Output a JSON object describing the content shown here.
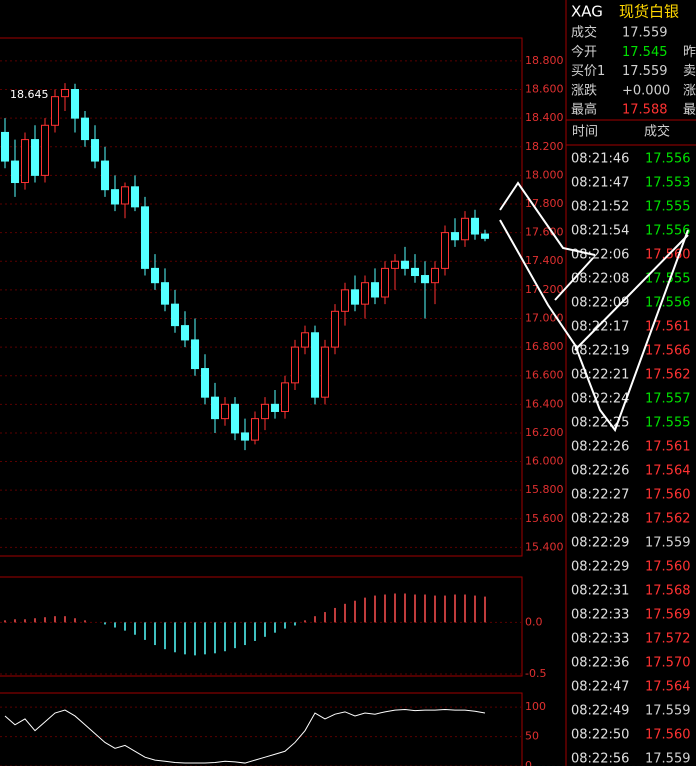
{
  "chart_data": [
    {
      "type": "candlestick",
      "annotation": "18.645",
      "open": [
        18.3,
        18.1,
        17.95,
        18.25,
        18.0,
        18.35,
        18.55,
        18.6,
        18.4,
        18.25,
        18.1,
        17.9,
        17.8,
        17.92,
        17.78,
        17.35,
        17.25,
        17.1,
        16.95,
        16.85,
        16.65,
        16.45,
        16.3,
        16.4,
        16.2,
        16.15,
        16.3,
        16.4,
        16.35,
        16.55,
        16.8,
        16.9,
        16.45,
        16.8,
        17.05,
        17.2,
        17.1,
        17.25,
        17.15,
        17.35,
        17.4,
        17.35,
        17.3,
        17.25,
        17.35,
        17.6,
        17.55,
        17.7,
        17.59
      ],
      "high": [
        18.4,
        18.25,
        18.3,
        18.35,
        18.4,
        18.6,
        18.645,
        18.64,
        18.45,
        18.35,
        18.2,
        18.0,
        17.95,
        18.0,
        17.85,
        17.45,
        17.35,
        17.2,
        17.05,
        17.0,
        16.75,
        16.55,
        16.45,
        16.45,
        16.3,
        16.35,
        16.45,
        16.5,
        16.6,
        16.85,
        16.95,
        16.95,
        16.85,
        17.1,
        17.25,
        17.3,
        17.3,
        17.35,
        17.4,
        17.45,
        17.5,
        17.45,
        17.4,
        17.4,
        17.65,
        17.7,
        17.75,
        17.76,
        17.62
      ],
      "low": [
        18.05,
        17.85,
        17.9,
        17.95,
        17.95,
        18.3,
        18.45,
        18.3,
        18.2,
        18.05,
        17.85,
        17.75,
        17.7,
        17.75,
        17.3,
        17.2,
        17.05,
        16.9,
        16.8,
        16.6,
        16.4,
        16.2,
        16.25,
        16.15,
        16.08,
        16.12,
        16.22,
        16.3,
        16.3,
        16.5,
        16.75,
        16.4,
        16.4,
        16.75,
        16.95,
        17.05,
        17.0,
        17.1,
        17.1,
        17.2,
        17.3,
        17.25,
        17.0,
        17.1,
        17.3,
        17.5,
        17.5,
        17.55,
        17.54
      ],
      "close": [
        18.1,
        17.95,
        18.25,
        18.0,
        18.35,
        18.55,
        18.6,
        18.4,
        18.25,
        18.1,
        17.9,
        17.8,
        17.92,
        17.78,
        17.35,
        17.25,
        17.1,
        16.95,
        16.85,
        16.65,
        16.45,
        16.3,
        16.4,
        16.2,
        16.15,
        16.3,
        16.4,
        16.35,
        16.55,
        16.8,
        16.9,
        16.45,
        16.8,
        17.05,
        17.2,
        17.1,
        17.25,
        17.15,
        17.35,
        17.4,
        17.35,
        17.3,
        17.25,
        17.35,
        17.6,
        17.55,
        17.7,
        17.59,
        17.56
      ],
      "up_color": "#ff3232",
      "down_color": "#54ffff",
      "ylim": [
        15.34,
        18.96
      ],
      "yticks": [
        {
          "value": 15.4,
          "label": "15.400"
        },
        {
          "value": 15.6,
          "label": "15.600"
        },
        {
          "value": 15.8,
          "label": "15.800"
        },
        {
          "value": 16.0,
          "label": "16.000"
        },
        {
          "value": 16.2,
          "label": "16.200"
        },
        {
          "value": 16.4,
          "label": "16.400"
        },
        {
          "value": 16.6,
          "label": "16.600"
        },
        {
          "value": 16.8,
          "label": "16.800"
        },
        {
          "value": 17.0,
          "label": "17.000"
        },
        {
          "value": 17.2,
          "label": "17.200"
        },
        {
          "value": 17.4,
          "label": "17.400"
        },
        {
          "value": 17.6,
          "label": "17.600"
        },
        {
          "value": 17.8,
          "label": "17.800"
        },
        {
          "value": 18.0,
          "label": "18.000"
        },
        {
          "value": 18.2,
          "label": "18.200"
        },
        {
          "value": 18.4,
          "label": "18.400"
        },
        {
          "value": 18.6,
          "label": "18.600"
        },
        {
          "value": 18.8,
          "label": "18.800"
        }
      ],
      "grid": true
    },
    {
      "type": "bar",
      "values": [
        0.02,
        0.03,
        0.03,
        0.04,
        0.05,
        0.06,
        0.06,
        0.04,
        0.02,
        0.0,
        -0.02,
        -0.05,
        -0.08,
        -0.12,
        -0.17,
        -0.22,
        -0.26,
        -0.29,
        -0.31,
        -0.32,
        -0.31,
        -0.3,
        -0.28,
        -0.25,
        -0.22,
        -0.18,
        -0.14,
        -0.1,
        -0.06,
        -0.03,
        0.02,
        0.06,
        0.1,
        0.14,
        0.18,
        0.21,
        0.24,
        0.26,
        0.27,
        0.28,
        0.28,
        0.27,
        0.27,
        0.26,
        0.26,
        0.27,
        0.27,
        0.26,
        0.25
      ],
      "up_color": "#ff5050",
      "down_color": "#54ffff",
      "ylim": [
        -0.52,
        0.44
      ],
      "yticks": [
        {
          "value": 0,
          "label": "0.0"
        },
        {
          "value": -0.5,
          "label": "-0.5"
        }
      ],
      "grid": true
    },
    {
      "type": "line",
      "values": [
        85,
        70,
        80,
        60,
        75,
        90,
        95,
        85,
        70,
        55,
        40,
        30,
        35,
        25,
        15,
        10,
        8,
        6,
        5,
        5,
        5,
        6,
        8,
        7,
        5,
        10,
        15,
        20,
        25,
        40,
        60,
        90,
        80,
        88,
        92,
        85,
        90,
        88,
        92,
        95,
        96,
        94,
        95,
        95,
        96,
        95,
        95,
        93,
        90
      ],
      "color": "#ffffff",
      "ylim": [
        0,
        124
      ],
      "yticks": [
        0,
        50,
        100
      ],
      "grid": true
    }
  ],
  "quote": {
    "symbol": "XAG",
    "name": "现货白银",
    "rows": [
      [
        "成交",
        "17.559",
        ""
      ],
      [
        "今开",
        "17.545",
        "昨"
      ],
      [
        "买价1",
        "17.559",
        "卖"
      ],
      [
        "涨跌",
        "+0.000",
        "涨"
      ],
      [
        "最高",
        "17.588",
        "最"
      ]
    ],
    "row_colors": [
      "#d0d0d0",
      "#00e000",
      "#d0d0d0",
      "#d0d0d0",
      "#ff3232"
    ]
  },
  "trades": {
    "headers": [
      "时间",
      "成交"
    ],
    "rows": [
      [
        "08:21:46",
        "17.556"
      ],
      [
        "08:21:47",
        "17.553"
      ],
      [
        "08:21:52",
        "17.555"
      ],
      [
        "08:21:54",
        "17.556"
      ],
      [
        "08:22:06",
        "17.560"
      ],
      [
        "08:22:08",
        "17.555"
      ],
      [
        "08:22:09",
        "17.556"
      ],
      [
        "08:22:17",
        "17.561"
      ],
      [
        "08:22:19",
        "17.566"
      ],
      [
        "08:22:21",
        "17.562"
      ],
      [
        "08:22:24",
        "17.557"
      ],
      [
        "08:22:25",
        "17.555"
      ],
      [
        "08:22:26",
        "17.561"
      ],
      [
        "08:22:26",
        "17.564"
      ],
      [
        "08:22:27",
        "17.560"
      ],
      [
        "08:22:28",
        "17.562"
      ],
      [
        "08:22:29",
        "17.559"
      ],
      [
        "08:22:29",
        "17.560"
      ],
      [
        "08:22:31",
        "17.568"
      ],
      [
        "08:22:33",
        "17.569"
      ],
      [
        "08:22:33",
        "17.572"
      ],
      [
        "08:22:36",
        "17.570"
      ],
      [
        "08:22:47",
        "17.564"
      ],
      [
        "08:22:49",
        "17.559"
      ],
      [
        "08:22:50",
        "17.560"
      ],
      [
        "08:22:56",
        "17.559"
      ]
    ],
    "colors": [
      "#00e000",
      "#00e000",
      "#00e000",
      "#00e000",
      "#ff3232",
      "#00e000",
      "#00e000",
      "#ff3232",
      "#ff3232",
      "#ff3232",
      "#00e000",
      "#00e000",
      "#ff3232",
      "#ff3232",
      "#ff3232",
      "#ff3232",
      "#d0d0d0",
      "#ff3232",
      "#ff3232",
      "#ff3232",
      "#ff3232",
      "#ff3232",
      "#ff3232",
      "#d0d0d0",
      "#ff3232",
      "#d0d0d0"
    ]
  }
}
